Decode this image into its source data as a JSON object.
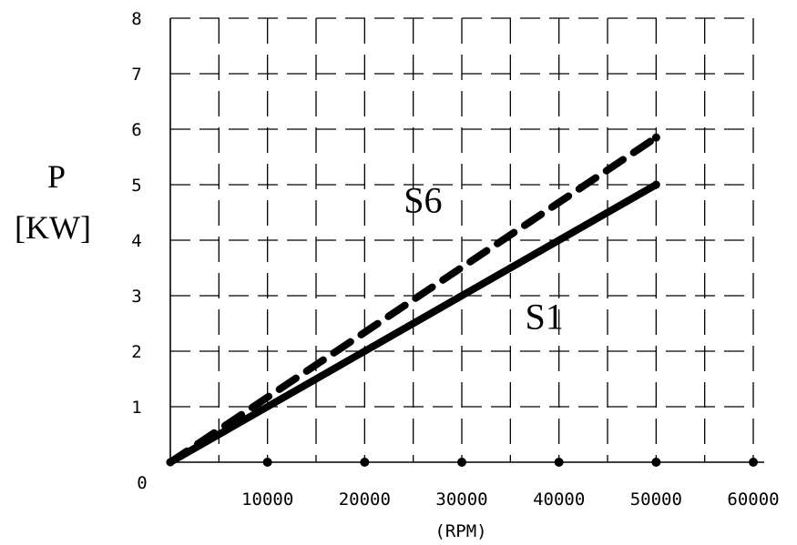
{
  "chart_data": {
    "type": "line",
    "ylabel_line1": "P",
    "ylabel_line2": "[KW]",
    "xlabel": "(RPM)",
    "xlim": [
      0,
      60000
    ],
    "ylim": [
      0,
      8
    ],
    "x_ticks": [
      0,
      10000,
      20000,
      30000,
      40000,
      50000,
      60000
    ],
    "y_ticks": [
      1,
      2,
      3,
      4,
      5,
      6,
      7,
      8
    ],
    "origin_label": "0",
    "grid": true,
    "series": [
      {
        "name": "S6",
        "style": "dashed",
        "x": [
          0,
          50000
        ],
        "y": [
          0,
          5.85
        ],
        "label_at": [
          26000,
          4.5
        ]
      },
      {
        "name": "S1",
        "style": "solid",
        "x": [
          0,
          50000
        ],
        "y": [
          0,
          5.0
        ],
        "label_at": [
          38500,
          2.4
        ]
      }
    ],
    "x_marker_points": [
      10000,
      20000,
      30000,
      40000,
      50000,
      60000
    ],
    "line_color": "#000000"
  }
}
